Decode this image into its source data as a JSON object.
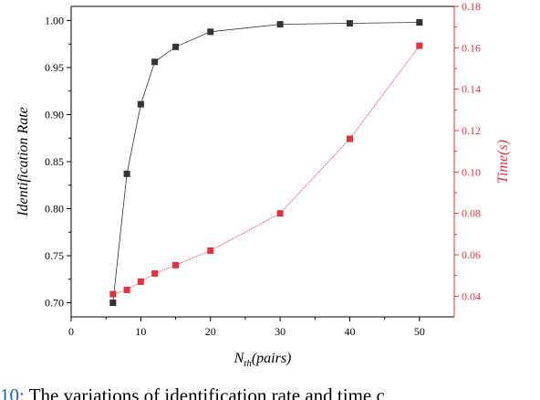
{
  "chart_data": {
    "type": "line",
    "x": [
      6,
      8,
      10,
      12,
      15,
      20,
      30,
      40,
      50
    ],
    "xlabel_main": "N",
    "xlabel_sub": "th",
    "xlabel_unit": "(pairs)",
    "xlim": [
      0,
      55
    ],
    "xticks": [
      0,
      10,
      20,
      30,
      40,
      50
    ],
    "series": [
      {
        "name": "Identification Rate",
        "axis": "left",
        "color": "#333333",
        "marker": "square",
        "values": [
          0.7,
          0.837,
          0.911,
          0.956,
          0.972,
          0.988,
          0.996,
          0.997,
          0.998
        ]
      },
      {
        "name": "Time(s)",
        "axis": "right",
        "color": "#e8303a",
        "marker": "square",
        "values": [
          0.041,
          0.043,
          0.047,
          0.051,
          0.055,
          0.062,
          0.08,
          0.116,
          0.161
        ]
      }
    ],
    "ylabel_left": "Identification Rate",
    "ylim_left": [
      0.685,
      1.015
    ],
    "yticks_left": [
      "0.70",
      "0.75",
      "0.80",
      "0.85",
      "0.90",
      "0.95",
      "1.00"
    ],
    "ylabel_right": "Time(s)",
    "ylim_right": [
      0.03,
      0.18
    ],
    "yticks_right": [
      "0.04",
      "0.06",
      "0.08",
      "0.10",
      "0.12",
      "0.14",
      "0.16",
      "0.18"
    ],
    "grid": false
  },
  "caption": {
    "figure_label": "10:",
    "text": " The variations of identification rate and time c"
  }
}
